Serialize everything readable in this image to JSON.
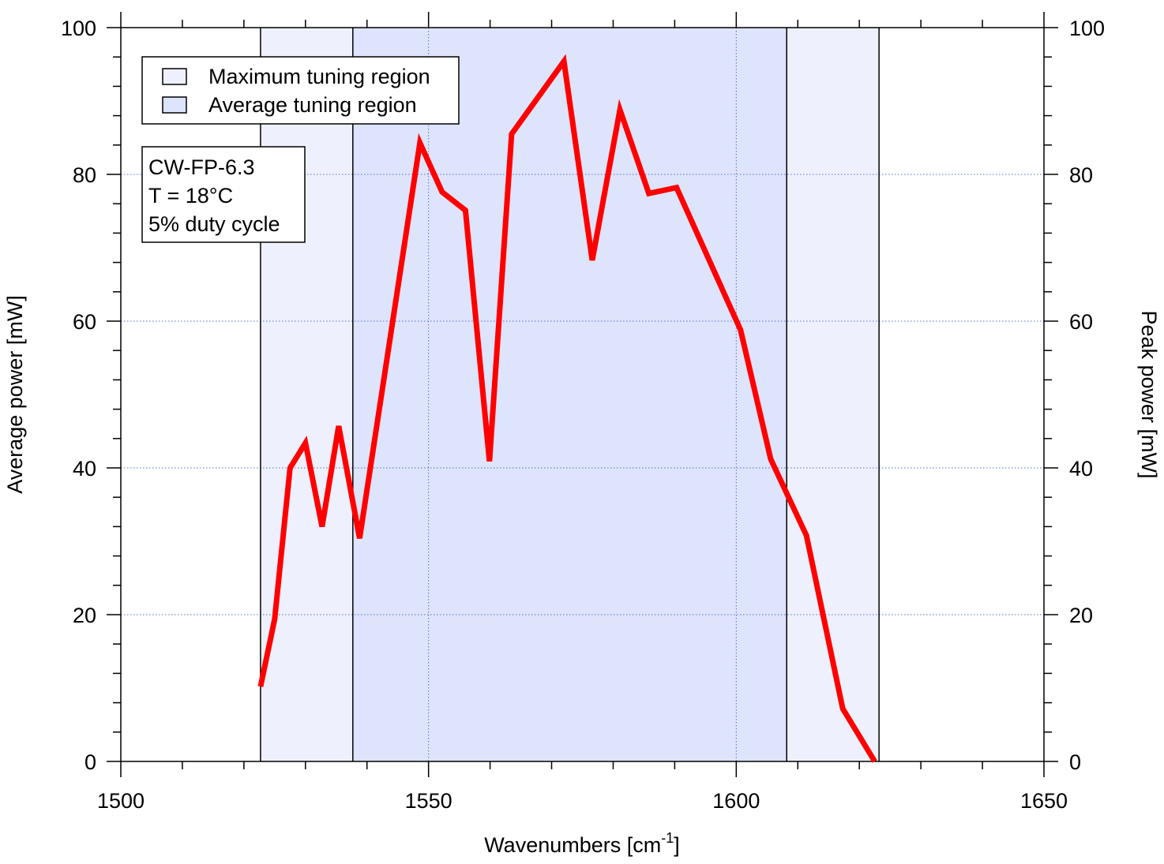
{
  "chart_data": {
    "type": "line",
    "xlabel": [
      "Wavenumbers [cm",
      "-1",
      "]"
    ],
    "ylabel": "Average power [mW]",
    "y2label": "Peak power [mW]",
    "xlim": [
      1500,
      1650
    ],
    "xticks": [
      1500,
      1550,
      1600,
      1650
    ],
    "x_minor_ticks": [
      1510,
      1520,
      1530,
      1540,
      1560,
      1570,
      1580,
      1590,
      1610,
      1620,
      1630,
      1640
    ],
    "ylim": [
      0,
      100
    ],
    "yticks": [
      0,
      20,
      40,
      60,
      80,
      100
    ],
    "y_minor_ticks": [
      4,
      8,
      12,
      16,
      24,
      28,
      32,
      36,
      44,
      48,
      52,
      56,
      64,
      68,
      72,
      76,
      84,
      88,
      92,
      96
    ],
    "y2lim": [
      0,
      100
    ],
    "y2ticks": [
      0,
      20,
      40,
      60,
      80,
      100
    ],
    "grid": true,
    "regions": [
      {
        "name": "Maximum tuning region",
        "color": "#eef1fd",
        "range": [
          1522.7,
          1623.2
        ]
      },
      {
        "name": "Average tuning region",
        "color": "#dde4fb",
        "range": [
          1537.7,
          1608.2
        ]
      }
    ],
    "annotation": [
      "CW-FP-6.3",
      "T = 18°C",
      "5% duty cycle"
    ],
    "series": [
      {
        "name": "Average power",
        "color": "#ff0000",
        "x": [
          1522.7,
          1525.0,
          1527.5,
          1530.0,
          1532.7,
          1535.4,
          1538.8,
          1548.6,
          1552.2,
          1556.0,
          1559.9,
          1563.5,
          1572.0,
          1576.6,
          1581.1,
          1585.8,
          1590.3,
          1600.7,
          1605.6,
          1611.4,
          1617.3,
          1622.5
        ],
        "values": [
          10.2,
          19.4,
          40.0,
          43.4,
          32.0,
          45.7,
          30.4,
          84.3,
          77.6,
          75.1,
          40.9,
          85.5,
          95.4,
          68.3,
          88.8,
          77.4,
          78.2,
          58.8,
          41.2,
          30.8,
          7.2,
          0
        ]
      }
    ]
  }
}
